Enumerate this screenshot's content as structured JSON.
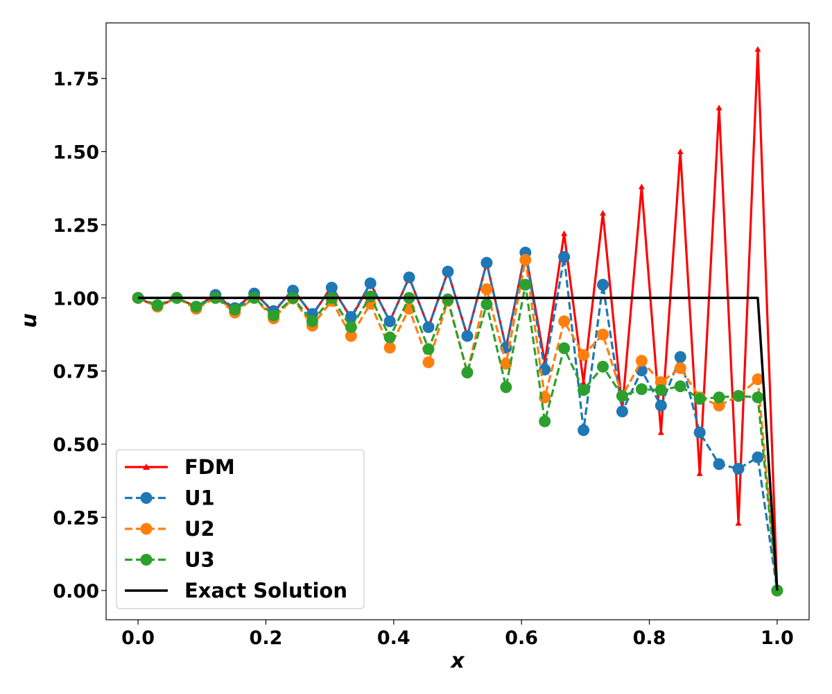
{
  "chart_data": {
    "type": "line",
    "title": "",
    "xlabel": "x",
    "ylabel": "u",
    "xlim": [
      -0.05,
      1.05
    ],
    "ylim": [
      -0.1,
      1.94
    ],
    "xticks": [
      0.0,
      0.2,
      0.4,
      0.6,
      0.8,
      1.0
    ],
    "xtick_labels": [
      "0.0",
      "0.2",
      "0.4",
      "0.6",
      "0.8",
      "1.0"
    ],
    "yticks": [
      0.0,
      0.25,
      0.5,
      0.75,
      1.0,
      1.25,
      1.5,
      1.75
    ],
    "ytick_labels": [
      "0.00",
      "0.25",
      "0.50",
      "0.75",
      "1.00",
      "1.25",
      "1.50",
      "1.75"
    ],
    "grid": false,
    "legend_position": "lower-left",
    "x": [
      0.0,
      0.0303,
      0.0606,
      0.0909,
      0.1212,
      0.1515,
      0.1818,
      0.2121,
      0.2424,
      0.2727,
      0.303,
      0.3333,
      0.3636,
      0.3939,
      0.4242,
      0.4545,
      0.4848,
      0.5152,
      0.5455,
      0.5758,
      0.6061,
      0.6364,
      0.6667,
      0.697,
      0.7273,
      0.7576,
      0.7879,
      0.8182,
      0.8485,
      0.8788,
      0.9091,
      0.9394,
      0.9697,
      1.0
    ],
    "series": [
      {
        "name": "FDM",
        "color": "#ff0000",
        "style": "solid",
        "marker": "triangle",
        "values": [
          1.0,
          0.97,
          1.0,
          0.97,
          1.01,
          0.96,
          1.02,
          0.95,
          1.03,
          0.94,
          1.04,
          0.93,
          1.05,
          0.92,
          1.07,
          0.9,
          1.09,
          0.87,
          1.12,
          0.83,
          1.16,
          0.78,
          1.22,
          0.71,
          1.29,
          0.62,
          1.38,
          0.54,
          1.5,
          0.4,
          1.65,
          0.23,
          1.85,
          0.0
        ]
      },
      {
        "name": "U1",
        "color": "#1f77b4",
        "style": "dashed",
        "marker": "circle",
        "values": [
          1.0,
          0.975,
          1.0,
          0.97,
          1.01,
          0.965,
          1.015,
          0.955,
          1.025,
          0.945,
          1.035,
          0.935,
          1.05,
          0.92,
          1.07,
          0.9,
          1.09,
          0.87,
          1.12,
          0.83,
          1.155,
          0.755,
          1.14,
          0.548,
          1.045,
          0.612,
          0.752,
          0.632,
          0.798,
          0.54,
          0.432,
          0.416,
          0.455,
          0.0
        ]
      },
      {
        "name": "U2",
        "color": "#ff7f0e",
        "style": "dashed",
        "marker": "circle",
        "values": [
          1.0,
          0.97,
          1.0,
          0.963,
          1.0,
          0.95,
          1.0,
          0.93,
          0.998,
          0.905,
          0.99,
          0.87,
          0.98,
          0.83,
          0.963,
          0.78,
          0.99,
          0.745,
          1.03,
          0.775,
          1.13,
          0.66,
          0.92,
          0.805,
          0.875,
          0.665,
          0.785,
          0.712,
          0.76,
          0.66,
          0.632,
          0.665,
          0.722,
          0.0
        ]
      },
      {
        "name": "U3",
        "color": "#2ca02c",
        "style": "dashed",
        "marker": "circle",
        "values": [
          1.0,
          0.975,
          1.0,
          0.97,
          1.0,
          0.96,
          1.0,
          0.94,
          1.0,
          0.92,
          1.0,
          0.9,
          1.005,
          0.865,
          1.0,
          0.825,
          0.995,
          0.745,
          0.978,
          0.695,
          1.045,
          0.578,
          0.828,
          0.685,
          0.765,
          0.665,
          0.688,
          0.685,
          0.698,
          0.655,
          0.66,
          0.665,
          0.66,
          0.0
        ]
      },
      {
        "name": "Exact Solution",
        "color": "#000000",
        "style": "solid",
        "marker": "none",
        "points": [
          [
            0.0,
            1.0
          ],
          [
            0.9697,
            1.0
          ],
          [
            1.0,
            0.0
          ]
        ]
      }
    ]
  }
}
